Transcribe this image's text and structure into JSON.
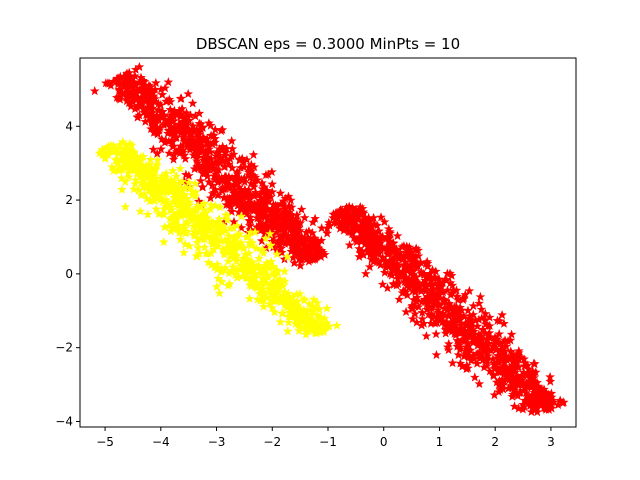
{
  "chart_data": {
    "type": "scatter",
    "title": "DBSCAN eps = 0.3000 MinPts = 10",
    "xlabel": "",
    "ylabel": "",
    "xlim": [
      -5.45,
      3.45
    ],
    "ylim": [
      -4.15,
      5.85
    ],
    "xticks": [
      -5,
      -4,
      -3,
      -2,
      -1,
      0,
      1,
      2,
      3
    ],
    "yticks": [
      -4,
      -2,
      0,
      2,
      4
    ],
    "grid": false,
    "legend": "none",
    "marker": "star",
    "series": [
      {
        "color": "#ff0000",
        "segments": [
          {
            "from": [
              -4.75,
              5.35
            ],
            "to": [
              -1.2,
              0.4
            ],
            "width": 0.9,
            "count": 900
          },
          {
            "from": [
              -0.75,
              1.75
            ],
            "to": [
              2.95,
              -3.7
            ],
            "width": 0.9,
            "count": 950
          }
        ]
      },
      {
        "color": "#ffff00",
        "segments": [
          {
            "from": [
              -4.9,
              3.5
            ],
            "to": [
              -1.1,
              -1.6
            ],
            "width": 0.85,
            "count": 800
          }
        ]
      }
    ]
  }
}
